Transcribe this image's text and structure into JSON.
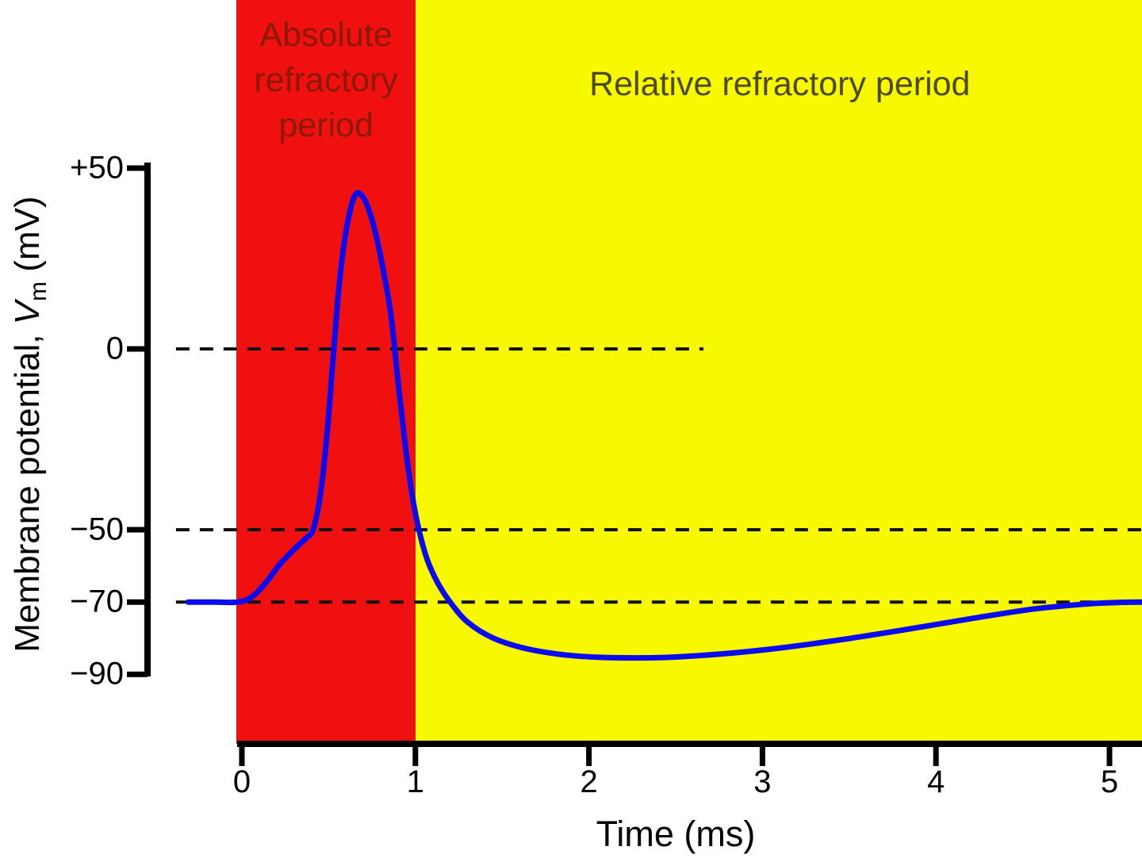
{
  "axis": {
    "y_title_pre": "Membrane potential, ",
    "y_title_var": "V",
    "y_title_sub": "m",
    "y_title_post": " (mV)"
  },
  "chart_data": {
    "type": "line",
    "title": "",
    "xlabel": "Time (ms)",
    "ylabel": "Membrane potential, Vm (mV)",
    "xlim": [
      -0.35,
      5.2
    ],
    "ylim": [
      -90,
      50
    ],
    "grid": false,
    "dash_color": "#111111",
    "x_ticks": [
      {
        "label": "0",
        "value": 0
      },
      {
        "label": "1",
        "value": 1
      },
      {
        "label": "2",
        "value": 2
      },
      {
        "label": "3",
        "value": 3
      },
      {
        "label": "4",
        "value": 4
      },
      {
        "label": "5",
        "value": 5
      }
    ],
    "y_ticks": [
      {
        "label": "+50",
        "value": 50
      },
      {
        "label": "0",
        "value": 0
      },
      {
        "label": "−50",
        "value": -50
      },
      {
        "label": "−70",
        "value": -70
      },
      {
        "label": "−90",
        "value": -90
      }
    ],
    "regions": [
      {
        "label": "Absolute refractory period",
        "t_start": -0.03,
        "t_end": 1.0,
        "color": "#f01010",
        "label_color": "#8a1a06"
      },
      {
        "label": "Relative refractory period",
        "t_start": 1.0,
        "t_end": 5.2,
        "color": "#f8f800",
        "label_color": "#4c4a00"
      }
    ],
    "reference_lines": [
      {
        "value": 0,
        "t_start": -0.38,
        "t_end": 2.66
      },
      {
        "value": -50,
        "t_start": -0.38,
        "t_end": 5.2
      },
      {
        "value": -70,
        "t_start": -0.38,
        "t_end": 5.2
      }
    ],
    "series": [
      {
        "name": "Membrane potential",
        "color": "#0b0bef",
        "stroke_width": 7,
        "points": [
          [
            -0.31,
            -70
          ],
          [
            -0.15,
            -70
          ],
          [
            -0.02,
            -70
          ],
          [
            0.06,
            -68.5
          ],
          [
            0.14,
            -64.5
          ],
          [
            0.22,
            -59.5
          ],
          [
            0.3,
            -55.5
          ],
          [
            0.37,
            -52.3
          ],
          [
            0.41,
            -50
          ],
          [
            0.45,
            -41
          ],
          [
            0.49,
            -24
          ],
          [
            0.52,
            -6
          ],
          [
            0.55,
            12
          ],
          [
            0.58,
            26
          ],
          [
            0.62,
            37.5
          ],
          [
            0.66,
            43
          ],
          [
            0.71,
            41
          ],
          [
            0.76,
            34
          ],
          [
            0.81,
            23
          ],
          [
            0.86,
            9
          ],
          [
            0.9,
            -9
          ],
          [
            0.94,
            -26
          ],
          [
            0.98,
            -40
          ],
          [
            1.02,
            -50
          ],
          [
            1.07,
            -58.5
          ],
          [
            1.13,
            -64.8
          ],
          [
            1.2,
            -70
          ],
          [
            1.3,
            -75.5
          ],
          [
            1.45,
            -80
          ],
          [
            1.65,
            -83
          ],
          [
            1.9,
            -84.8
          ],
          [
            2.15,
            -85.4
          ],
          [
            2.45,
            -85.3
          ],
          [
            2.75,
            -84.4
          ],
          [
            3.05,
            -83
          ],
          [
            3.4,
            -80.8
          ],
          [
            3.8,
            -77.8
          ],
          [
            4.2,
            -74.6
          ],
          [
            4.55,
            -72
          ],
          [
            4.85,
            -70.6
          ],
          [
            5.05,
            -70.1
          ],
          [
            5.22,
            -70
          ]
        ]
      }
    ]
  }
}
